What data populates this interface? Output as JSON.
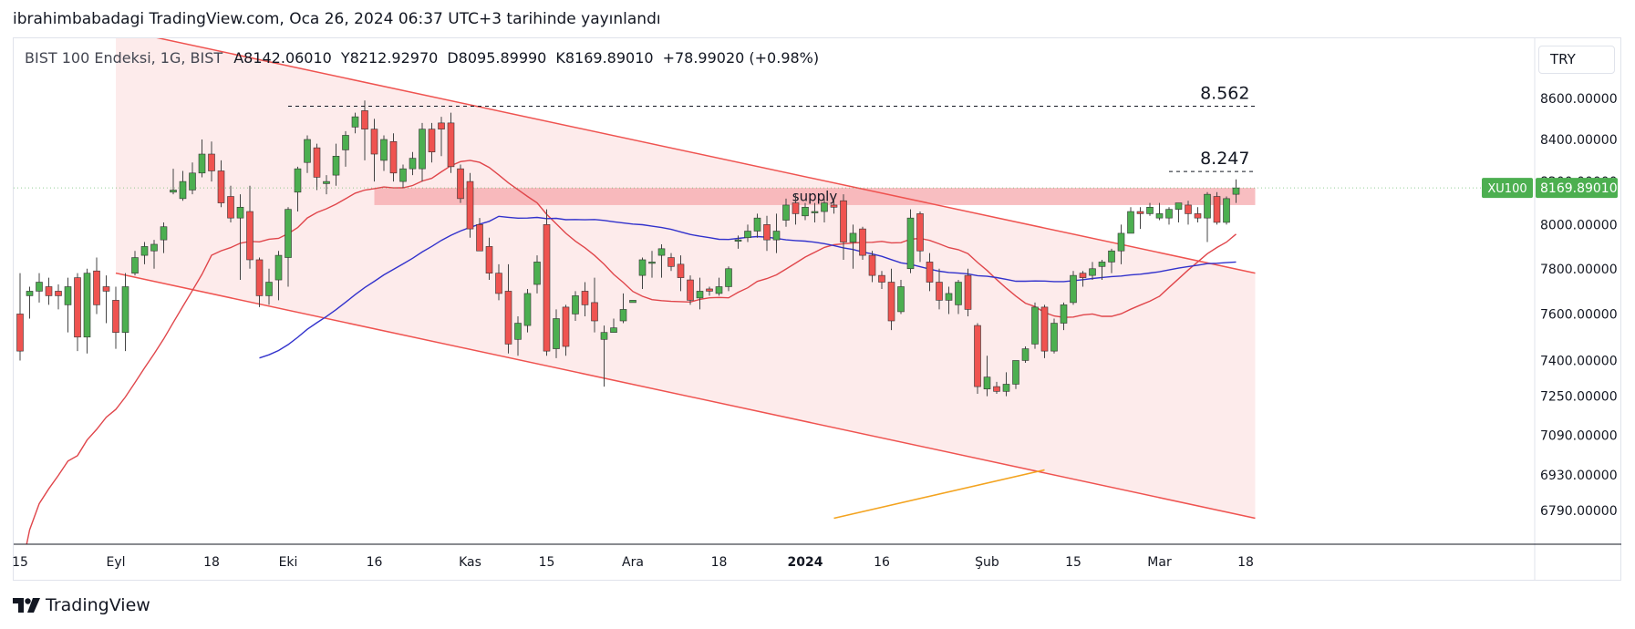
{
  "header": {
    "published": "ibrahimbabadagi TradingView.com, Oca 26, 2024 06:37 UTC+3 tarihinde yayınlandı"
  },
  "legend": {
    "symbol": "BIST 100 Endeksi, 1G, BIST",
    "open": "A8142.06010",
    "high": "Y8212.92970",
    "low": "D8095.89990",
    "close": "K8169.89010",
    "change": "+78.99020 (+0.98%)"
  },
  "currency": "TRY",
  "brand": "TradingView",
  "chart_data": {
    "type": "candlestick",
    "price_scale": "log",
    "y_ticks": [
      "8600.00000",
      "8400.00000",
      "8200.00000",
      "8000.00000",
      "7800.00000",
      "7600.00000",
      "7400.00000",
      "7250.00000",
      "7090.00000",
      "6930.00000",
      "6790.00000"
    ],
    "x_ticks": [
      {
        "label": "15",
        "bar": 0
      },
      {
        "label": "Eyl",
        "bar": 10
      },
      {
        "label": "18",
        "bar": 20
      },
      {
        "label": "Eki",
        "bar": 28
      },
      {
        "label": "16",
        "bar": 37
      },
      {
        "label": "Kas",
        "bar": 47
      },
      {
        "label": "15",
        "bar": 55
      },
      {
        "label": "Ara",
        "bar": 64
      },
      {
        "label": "18",
        "bar": 73
      },
      {
        "label": "2024",
        "bar": 82,
        "bold": true
      },
      {
        "label": "16",
        "bar": 90
      },
      {
        "label": "Şub",
        "bar": 101
      },
      {
        "label": "15",
        "bar": 110
      },
      {
        "label": "Mar",
        "bar": 119
      },
      {
        "label": "18",
        "bar": 128
      }
    ],
    "candles": [
      [
        7600,
        7780,
        7400,
        7440
      ],
      [
        7680,
        7720,
        7580,
        7700
      ],
      [
        7700,
        7780,
        7650,
        7740
      ],
      [
        7720,
        7760,
        7640,
        7680
      ],
      [
        7700,
        7730,
        7620,
        7680
      ],
      [
        7640,
        7760,
        7520,
        7720
      ],
      [
        7760,
        7780,
        7440,
        7500
      ],
      [
        7500,
        7800,
        7430,
        7780
      ],
      [
        7790,
        7850,
        7600,
        7640
      ],
      [
        7720,
        7770,
        7560,
        7700
      ],
      [
        7660,
        7720,
        7450,
        7520
      ],
      [
        7520,
        7780,
        7440,
        7720
      ],
      [
        7780,
        7880,
        7770,
        7850
      ],
      [
        7860,
        7920,
        7820,
        7900
      ],
      [
        7880,
        7930,
        7800,
        7910
      ],
      [
        7930,
        8010,
        7870,
        7990
      ],
      [
        8150,
        8260,
        8140,
        8160
      ],
      [
        8120,
        8250,
        8110,
        8200
      ],
      [
        8160,
        8290,
        8140,
        8240
      ],
      [
        8240,
        8400,
        8220,
        8330
      ],
      [
        8330,
        8390,
        8200,
        8250
      ],
      [
        8250,
        8300,
        8080,
        8100
      ],
      [
        8130,
        8180,
        8010,
        8030
      ],
      [
        8030,
        8140,
        7750,
        8080
      ],
      [
        8060,
        8180,
        7800,
        7840
      ],
      [
        7840,
        7850,
        7630,
        7680
      ],
      [
        7680,
        7800,
        7640,
        7740
      ],
      [
        7750,
        7880,
        7660,
        7860
      ],
      [
        7850,
        8080,
        7720,
        8070
      ],
      [
        8150,
        8270,
        8060,
        8260
      ],
      [
        8290,
        8420,
        8240,
        8400
      ],
      [
        8360,
        8380,
        8160,
        8220
      ],
      [
        8190,
        8230,
        8140,
        8200
      ],
      [
        8230,
        8380,
        8180,
        8320
      ],
      [
        8350,
        8440,
        8270,
        8420
      ],
      [
        8460,
        8530,
        8430,
        8510
      ],
      [
        8540,
        8590,
        8300,
        8450
      ],
      [
        8450,
        8500,
        8200,
        8330
      ],
      [
        8300,
        8420,
        8250,
        8400
      ],
      [
        8390,
        8430,
        8200,
        8240
      ],
      [
        8200,
        8280,
        8170,
        8260
      ],
      [
        8260,
        8340,
        8230,
        8310
      ],
      [
        8260,
        8480,
        8200,
        8450
      ],
      [
        8450,
        8480,
        8290,
        8340
      ],
      [
        8480,
        8510,
        8320,
        8450
      ],
      [
        8480,
        8530,
        8240,
        8270
      ],
      [
        8260,
        8280,
        8100,
        8120
      ],
      [
        8200,
        8240,
        7940,
        7980
      ],
      [
        8000,
        8030,
        7880,
        7880
      ],
      [
        7900,
        7940,
        7750,
        7780
      ],
      [
        7780,
        7820,
        7660,
        7690
      ],
      [
        7700,
        7820,
        7430,
        7470
      ],
      [
        7490,
        7590,
        7420,
        7560
      ],
      [
        7550,
        7710,
        7520,
        7690
      ],
      [
        7730,
        7860,
        7690,
        7830
      ],
      [
        8000,
        8070,
        7420,
        7440
      ],
      [
        7450,
        7620,
        7410,
        7580
      ],
      [
        7630,
        7640,
        7420,
        7460
      ],
      [
        7600,
        7700,
        7570,
        7680
      ],
      [
        7700,
        7740,
        7590,
        7640
      ],
      [
        7650,
        7760,
        7520,
        7570
      ],
      [
        7490,
        7550,
        7290,
        7520
      ],
      [
        7520,
        7580,
        7520,
        7540
      ],
      [
        7570,
        7690,
        7560,
        7620
      ],
      [
        7650,
        7660,
        7660,
        7660
      ],
      [
        7770,
        7850,
        7710,
        7840
      ],
      [
        7830,
        7880,
        7760,
        7830
      ],
      [
        7860,
        7910,
        7760,
        7890
      ],
      [
        7850,
        7870,
        7790,
        7810
      ],
      [
        7820,
        7860,
        7700,
        7760
      ],
      [
        7750,
        7770,
        7640,
        7660
      ],
      [
        7670,
        7760,
        7620,
        7700
      ],
      [
        7710,
        7720,
        7680,
        7700
      ],
      [
        7690,
        7760,
        7680,
        7720
      ],
      [
        7720,
        7810,
        7700,
        7800
      ],
      [
        7930,
        7950,
        7890,
        7930
      ],
      [
        7940,
        8000,
        7920,
        7970
      ],
      [
        7970,
        8050,
        7940,
        8030
      ],
      [
        8000,
        8040,
        7880,
        7930
      ],
      [
        7930,
        8050,
        7870,
        7970
      ],
      [
        8020,
        8120,
        7990,
        8090
      ],
      [
        8100,
        8140,
        8000,
        8050
      ],
      [
        8040,
        8100,
        8020,
        8080
      ],
      [
        8060,
        8100,
        8010,
        8060
      ],
      [
        8060,
        8120,
        8010,
        8100
      ],
      [
        8090,
        8120,
        8050,
        8080
      ],
      [
        8110,
        8140,
        7840,
        7920
      ],
      [
        7920,
        8000,
        7800,
        7960
      ],
      [
        7980,
        7990,
        7840,
        7860
      ],
      [
        7860,
        7880,
        7740,
        7770
      ],
      [
        7770,
        7790,
        7710,
        7740
      ],
      [
        7740,
        7800,
        7530,
        7570
      ],
      [
        7610,
        7750,
        7600,
        7720
      ],
      [
        7800,
        8070,
        7780,
        8030
      ],
      [
        8050,
        8060,
        7830,
        7880
      ],
      [
        7830,
        7870,
        7700,
        7740
      ],
      [
        7740,
        7800,
        7620,
        7660
      ],
      [
        7660,
        7720,
        7600,
        7690
      ],
      [
        7640,
        7750,
        7600,
        7740
      ],
      [
        7770,
        7800,
        7590,
        7620
      ],
      [
        7550,
        7560,
        7260,
        7290
      ],
      [
        7280,
        7420,
        7250,
        7330
      ],
      [
        7290,
        7310,
        7260,
        7270
      ],
      [
        7270,
        7350,
        7250,
        7300
      ],
      [
        7300,
        7400,
        7280,
        7400
      ],
      [
        7400,
        7460,
        7390,
        7450
      ],
      [
        7470,
        7650,
        7450,
        7630
      ],
      [
        7630,
        7640,
        7410,
        7440
      ],
      [
        7440,
        7580,
        7430,
        7560
      ],
      [
        7560,
        7650,
        7530,
        7640
      ],
      [
        7650,
        7790,
        7640,
        7770
      ],
      [
        7780,
        7790,
        7720,
        7760
      ],
      [
        7770,
        7830,
        7750,
        7800
      ],
      [
        7810,
        7840,
        7750,
        7830
      ],
      [
        7830,
        7890,
        7780,
        7880
      ],
      [
        7880,
        8000,
        7820,
        7960
      ],
      [
        7960,
        8080,
        7960,
        8060
      ],
      [
        8060,
        8080,
        7980,
        8050
      ],
      [
        8050,
        8100,
        8040,
        8080
      ],
      [
        8030,
        8100,
        8020,
        8050
      ],
      [
        8030,
        8080,
        8000,
        8070
      ],
      [
        8070,
        8100,
        8010,
        8100
      ],
      [
        8090,
        8110,
        8000,
        8050
      ],
      [
        8050,
        8080,
        8010,
        8030
      ],
      [
        8030,
        8150,
        7920,
        8140
      ],
      [
        8130,
        8150,
        8000,
        8010
      ],
      [
        8010,
        8130,
        8000,
        8120
      ],
      [
        8140,
        8210,
        8100,
        8170
      ]
    ],
    "overlays": {
      "supply_zone": {
        "label": "supply",
        "y_low": 8090,
        "y_high": 8170,
        "bar_from": 37,
        "bar_to": 129
      },
      "channel_upper": {
        "bar_from": 10,
        "y_from": 8950,
        "bar_to": 129,
        "y_to": 7780
      },
      "channel_lower": {
        "bar_from": 10,
        "y_from": 7780,
        "bar_to": 129,
        "y_to": 6760
      },
      "level_high": {
        "label": "8.562",
        "y": 8562,
        "bar_from": 28,
        "bar_to": 129
      },
      "level_mid": {
        "label": "8.247",
        "y": 8247,
        "bar_from": 120,
        "bar_to": 129
      }
    },
    "last_price_label": {
      "symbol": "XU100",
      "value": "8169.89010",
      "y": 8169.89
    }
  },
  "colors": {
    "up": "#4caf50",
    "down": "#ef5350",
    "channel": "#ef5350",
    "channel_fill": "#fde8e7",
    "supply": "#f6a8ac",
    "ma_red": "#e0464b",
    "ma_blue": "#3232cc",
    "ma_orange": "#f3a31f",
    "badge": "#4caf50"
  }
}
